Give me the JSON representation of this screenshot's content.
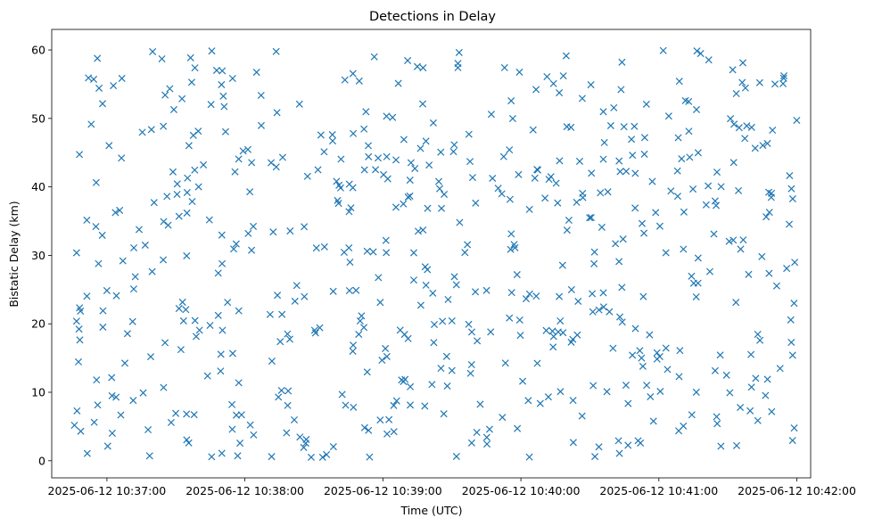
{
  "chart_data": {
    "type": "scatter",
    "title": "Detections in Delay",
    "xlabel": "Time (UTC)",
    "ylabel": "Bistatic Delay (km)",
    "x_start": "2025-06-12 10:36:45",
    "x_end": "2025-06-12 10:42:00",
    "xlim": [
      "2025-06-12 10:36:36",
      "2025-06-12 10:42:06"
    ],
    "ylim": [
      -2.5,
      63
    ],
    "x_ticks": [
      "2025-06-12 10:37:00",
      "2025-06-12 10:38:00",
      "2025-06-12 10:39:00",
      "2025-06-12 10:40:00",
      "2025-06-12 10:41:00",
      "2025-06-12 10:42:00"
    ],
    "y_ticks": [
      0,
      10,
      20,
      30,
      40,
      50,
      60
    ],
    "marker": "x",
    "color": "#1f77b4",
    "grid": false,
    "point_count": 600,
    "y_range": [
      0.5,
      60
    ]
  }
}
